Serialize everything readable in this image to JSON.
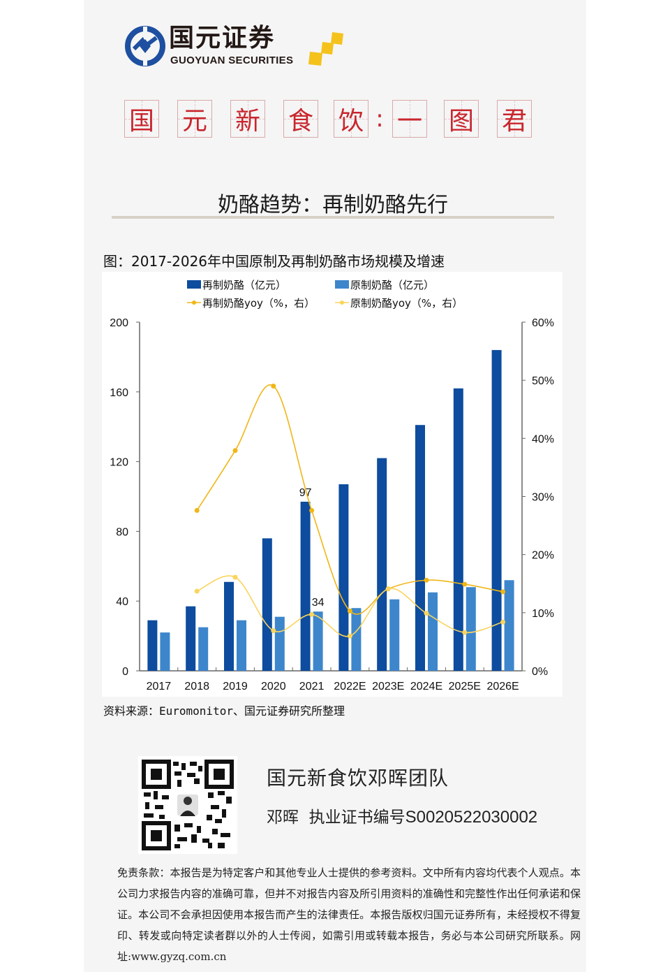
{
  "logo": {
    "name_cn": "国元证券",
    "name_en": "GUOYUAN SECURITIES",
    "colors": {
      "ring": "#1e4fa0",
      "squares": "#f4c21b",
      "text": "#231815"
    }
  },
  "banner": {
    "chars": [
      "国",
      "元",
      "新",
      "食",
      "饮",
      "一",
      "图",
      "君"
    ],
    "separator": ":",
    "color": "#c8262d"
  },
  "subtitle": "奶酪趋势：再制奶酪先行",
  "figure_title": "图：2017-2026年中国原制及再制奶酪市场规模及增速",
  "legend": {
    "reprocessed_bar": "再制奶酪（亿元）",
    "natural_bar": "原制奶酪（亿元）",
    "reprocessed_yoy": "再制奶酪yoy（%，右）",
    "natural_yoy": "原制奶酪yoy（%，右）"
  },
  "chart_data": {
    "type": "bar",
    "title": "2017-2026年中国原制及再制奶酪市场规模及增速",
    "categories": [
      "2017",
      "2018",
      "2019",
      "2020",
      "2021",
      "2022E",
      "2023E",
      "2024E",
      "2025E",
      "2026E"
    ],
    "series": [
      {
        "name": "再制奶酪（亿元）",
        "type": "bar",
        "axis": "left",
        "color": "#0d4c9e",
        "values": [
          29,
          37,
          51,
          76,
          97,
          107,
          122,
          141,
          162,
          184
        ]
      },
      {
        "name": "原制奶酪（亿元）",
        "type": "bar",
        "axis": "left",
        "color": "#3d86cc",
        "values": [
          22,
          25,
          29,
          31,
          34,
          36,
          41,
          45,
          48,
          52
        ]
      },
      {
        "name": "再制奶酪yoy（%，右）",
        "type": "line",
        "axis": "right",
        "color": "#f0b616",
        "values": [
          null,
          27.6,
          37.9,
          49.0,
          27.6,
          10.3,
          14.1,
          15.6,
          14.9,
          13.6
        ]
      },
      {
        "name": "原制奶酪yoy（%，右）",
        "type": "line",
        "axis": "right",
        "color": "#fad45e",
        "values": [
          null,
          13.7,
          16.1,
          6.9,
          9.7,
          6.0,
          14.1,
          9.9,
          6.6,
          8.4
        ]
      }
    ],
    "data_labels": [
      {
        "category": "2021",
        "series": "再制奶酪（亿元）",
        "text": "97"
      },
      {
        "category": "2021",
        "series": "原制奶酪（亿元）",
        "text": "34"
      }
    ],
    "left_axis": {
      "ylim": [
        0,
        200
      ],
      "ticks": [
        "0",
        "40",
        "80",
        "120",
        "160",
        "200"
      ]
    },
    "right_axis": {
      "ylim": [
        0,
        60
      ],
      "ticks": [
        "0%",
        "10%",
        "20%",
        "30%",
        "40%",
        "50%",
        "60%"
      ]
    },
    "xlabel": "",
    "ylabel": "",
    "grid": false,
    "legend_position": "top"
  },
  "source": "资料来源：Euromonitor、国元证券研究所整理",
  "team": {
    "name": "国元新食饮邓晖团队",
    "analyst": "邓晖",
    "cert_label": "执业证书编号",
    "cert_number": "S0020522030002"
  },
  "disclaimer": "免责条款：本报告是为特定客户和其他专业人士提供的参考资料。文中所有内容均代表个人观点。本公司力求报告内容的准确可靠，但并不对报告内容及所引用资料的准确性和完整性作出任何承诺和保证。本公司不会承担因使用本报告而产生的法律责任。本报告版权归国元证券所有，未经授权不得复印、转发或向特定读者群以外的人士传阅，如需引用或转载本报告，务必与本公司研究所联系。网址:www.gyzq.com.cn"
}
